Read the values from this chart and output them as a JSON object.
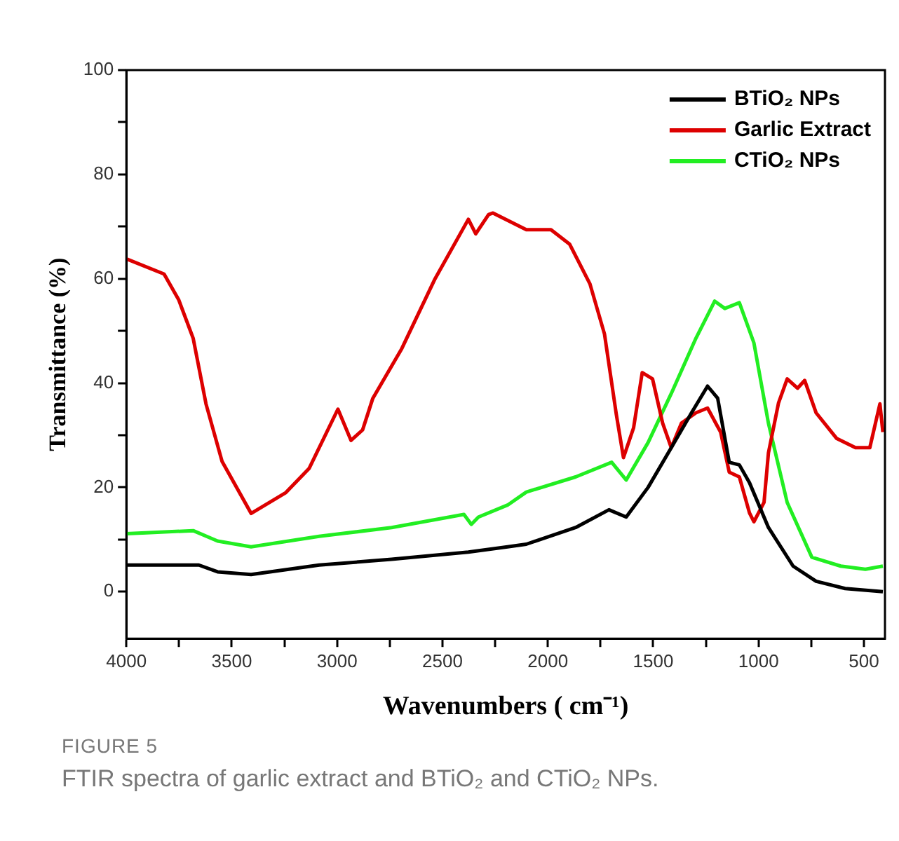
{
  "chart_data": {
    "type": "line",
    "xlabel": "Wavenumbers ( cm⁻¹)",
    "ylabel": "Transmittance (%)",
    "annotations": [
      "FIGURE 5",
      "FTIR spectra of garlic extract and BTiO₂ and CTiO₂ NPs."
    ],
    "xlim": [
      4000,
      400
    ],
    "xticks": [
      4000,
      {
        "value": 3750,
        "label": null
      },
      3500,
      {
        "value": 3250,
        "label": null
      },
      3000,
      {
        "value": 2750,
        "label": null
      },
      2500,
      {
        "value": 2250,
        "label": null
      },
      2000,
      {
        "value": 1750,
        "label": null
      },
      1500,
      {
        "value": 1250,
        "label": null
      },
      1000,
      {
        "value": 750,
        "label": null
      },
      500
    ],
    "ylim": [
      -9,
      100
    ],
    "yticks": [
      0,
      {
        "value": 10,
        "label": null
      },
      20,
      {
        "value": 30,
        "label": null
      },
      40,
      {
        "value": 50,
        "label": null
      },
      60,
      {
        "value": 70,
        "label": null
      },
      80,
      {
        "value": 90,
        "label": null
      },
      100
    ],
    "grid": false,
    "legend": "top right",
    "marker": "none",
    "line_style": "solid",
    "series": [
      {
        "name": "BTiO₂ NPs",
        "color": "#000000",
        "x": [
          4000,
          3656,
          3567,
          3408,
          3085,
          2741,
          2377,
          2191,
          2102,
          1868,
          1710,
          1628,
          1524,
          1414,
          1318,
          1242,
          1194,
          1139,
          1091,
          1043,
          953,
          836,
          727,
          589,
          410
        ],
        "values": [
          5.1,
          5.1,
          3.8,
          3.3,
          5.1,
          6.2,
          7.6,
          8.6,
          9.1,
          12.3,
          15.7,
          14.3,
          20,
          27.6,
          34.3,
          39.4,
          37.1,
          24.8,
          24.3,
          20.9,
          12.3,
          4.9,
          2,
          0.6,
          0
        ]
      },
      {
        "name": "Garlic Extract",
        "color": "#dd0000",
        "x": [
          4000,
          3821,
          3752,
          3683,
          3622,
          3546,
          3408,
          3243,
          3133,
          2996,
          2934,
          2879,
          2831,
          2693,
          2535,
          2377,
          2342,
          2281,
          2260,
          2102,
          1985,
          1896,
          1800,
          1731,
          1675,
          1641,
          1593,
          1552,
          1503,
          1455,
          1414,
          1366,
          1297,
          1242,
          1180,
          1139,
          1091,
          1043,
          1022,
          974,
          953,
          905,
          864,
          815,
          781,
          727,
          630,
          540,
          472,
          424,
          410
        ],
        "values": [
          63.8,
          60.9,
          56,
          48.6,
          36,
          25,
          15,
          19,
          23.6,
          35,
          29,
          31,
          37,
          46.6,
          60,
          71.4,
          68.6,
          72.3,
          72.6,
          69.4,
          69.4,
          66.6,
          59,
          49.4,
          34,
          25.7,
          31.4,
          42,
          40.8,
          32.3,
          27.6,
          32.3,
          34.3,
          35.2,
          30.6,
          22.9,
          22,
          15.1,
          13.4,
          17.1,
          26.6,
          36.2,
          40.8,
          39,
          40.5,
          34.3,
          29.4,
          27.6,
          27.6,
          36,
          30.6
        ]
      },
      {
        "name": "CTiO₂ NPs",
        "color": "#22ee22",
        "x": [
          4000,
          3683,
          3567,
          3408,
          3085,
          2741,
          2398,
          2363,
          2329,
          2191,
          2102,
          1868,
          1697,
          1628,
          1524,
          1414,
          1297,
          1208,
          1160,
          1091,
          1022,
          953,
          864,
          747,
          610,
          493,
          410
        ],
        "values": [
          11.1,
          11.7,
          9.7,
          8.6,
          10.6,
          12.3,
          14.8,
          12.9,
          14.3,
          16.6,
          19.1,
          22,
          24.8,
          21.4,
          28.6,
          38,
          48.6,
          55.7,
          54.3,
          55.4,
          47.7,
          32.3,
          17.1,
          6.6,
          4.9,
          4.3,
          4.9
        ]
      }
    ]
  }
}
